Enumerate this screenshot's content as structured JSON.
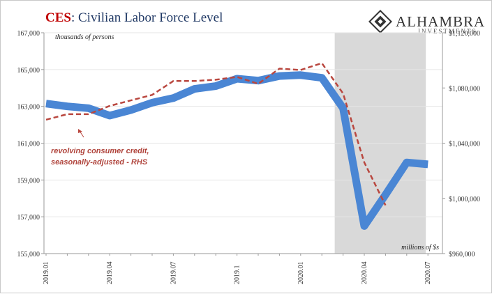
{
  "title": {
    "accent": "CES",
    "rest": ": Civilian Labor Force Level"
  },
  "logo": {
    "name": "ALHAMBRA",
    "sub": "INVESTMENTS"
  },
  "colors": {
    "labor_force": "#4a86d4",
    "credit": "#b9473f",
    "recession": "#d9d9d9",
    "title": "#1f3864",
    "accent": "#c00000"
  },
  "chart_data": {
    "type": "line",
    "categories": [
      "2019.01",
      "2019.02",
      "2019.03",
      "2019.04",
      "2019.05",
      "2019.06",
      "2019.07",
      "2019.08",
      "2019.09",
      "2019.1",
      "2019.11",
      "2019.12",
      "2020.01",
      "2020.02",
      "2020.03",
      "2020.04",
      "2020.05",
      "2020.06",
      "2020.07"
    ],
    "x_tick_labels": [
      "2019.01",
      "2019.04",
      "2019.07",
      "2019.1",
      "2020.01",
      "2020.04",
      "2020.07"
    ],
    "left_axis": {
      "unit_label": "thousands of persons",
      "ylim": [
        155000,
        167000
      ],
      "ticks": [
        "155,000",
        "157,000",
        "159,000",
        "161,000",
        "163,000",
        "165,000",
        "167,000"
      ]
    },
    "right_axis": {
      "unit_label": "millions of $s",
      "ylim": [
        960000,
        1120000
      ],
      "ticks": [
        "$960,000",
        "$1,000,000",
        "$1,040,000",
        "$1,080,000",
        "$1,120,000"
      ]
    },
    "series": [
      {
        "axis": "left",
        "style": "thick-solid",
        "values": [
          163150,
          163000,
          162900,
          162500,
          162800,
          163200,
          163450,
          163950,
          164100,
          164500,
          164400,
          164650,
          164700,
          164550,
          162900,
          156500,
          158200,
          159950,
          159850
        ]
      },
      {
        "axis": "right",
        "style": "dashed",
        "values": [
          1057000,
          1061000,
          1061000,
          1067000,
          1071000,
          1075000,
          1085000,
          1085000,
          1086000,
          1088000,
          1083000,
          1094000,
          1093000,
          1098000,
          1076000,
          1026000,
          995000,
          null,
          null
        ]
      }
    ],
    "shaded_region": {
      "from_index": 14,
      "to_index": 18
    },
    "annotations": [
      {
        "line1": "revolving consumer credit,",
        "line2": "seasonally-adjusted - RHS"
      }
    ],
    "grid": true
  }
}
